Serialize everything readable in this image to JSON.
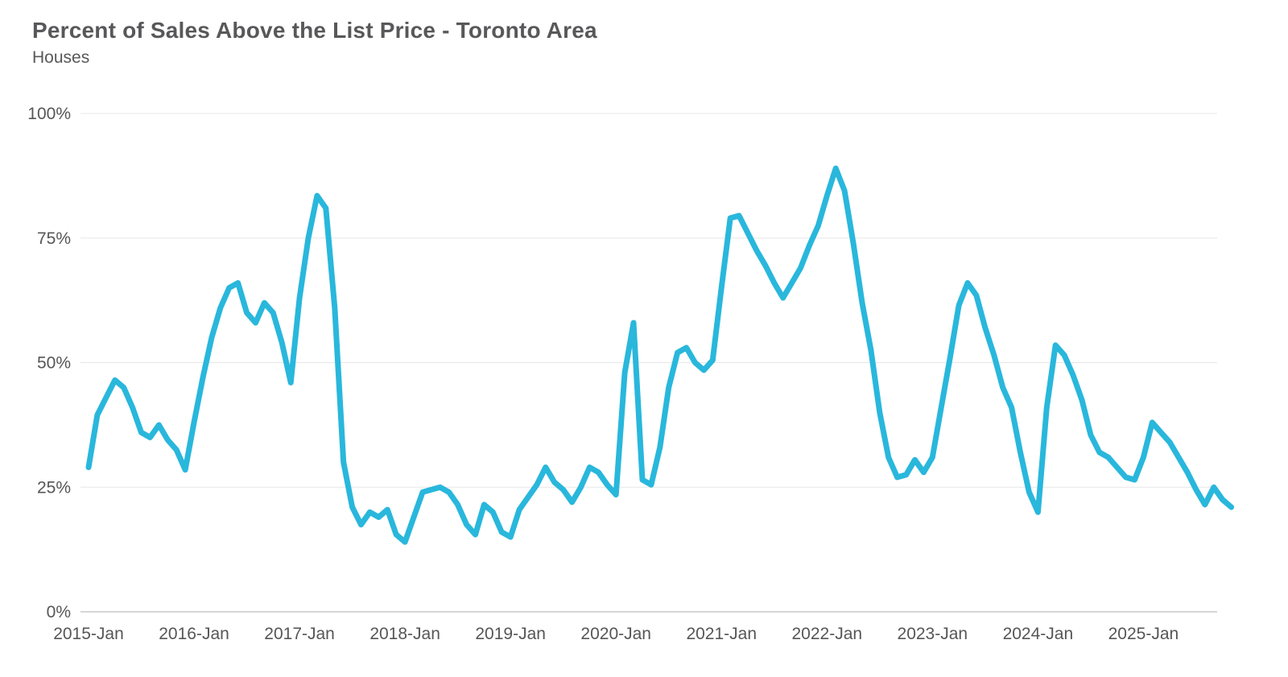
{
  "chart_data": {
    "type": "line",
    "title": "Percent of Sales Above the List Price - Toronto Area",
    "subtitle": "Houses",
    "unit": "%",
    "x_start": "2015-Jan",
    "x_end": "2025-Nov",
    "x_frequency": "monthly",
    "x_tick_labels": [
      "2015-Jan",
      "2016-Jan",
      "2017-Jan",
      "2018-Jan",
      "2019-Jan",
      "2020-Jan",
      "2021-Jan",
      "2022-Jan",
      "2023-Jan",
      "2024-Jan",
      "2025-Jan"
    ],
    "y_ticks": [
      0,
      25,
      50,
      75,
      100
    ],
    "y_tick_labels": [
      "0%",
      "25%",
      "50%",
      "75%",
      "100%"
    ],
    "ylim": [
      0,
      100
    ],
    "grid": true,
    "legend": false,
    "line_color": "#29b7dc",
    "axis_label_color": "#565656",
    "title_color": "#58585a",
    "gridline_color": "#e7e7e7",
    "series": [
      {
        "name": "Houses",
        "values": [
          29,
          39.5,
          43,
          46.5,
          45,
          41,
          36,
          35,
          37.5,
          34.5,
          32.5,
          28.5,
          38,
          47,
          55,
          61,
          65,
          66,
          60,
          58,
          62,
          60,
          54,
          46,
          63,
          75,
          83.5,
          81,
          61,
          30,
          21,
          17.5,
          20,
          19,
          20.5,
          15.5,
          14,
          19,
          24,
          24.5,
          25,
          24,
          21.5,
          17.5,
          15.5,
          21.5,
          20,
          16,
          15,
          20.5,
          23,
          25.5,
          29,
          26,
          24.5,
          22,
          25,
          29,
          28,
          25.5,
          23.5,
          48,
          58,
          26.5,
          25.5,
          33,
          45,
          52,
          53,
          50,
          48.5,
          50.5,
          65,
          79,
          79.5,
          76,
          72.5,
          69.5,
          66,
          63,
          66,
          69,
          73.5,
          77.5,
          83.5,
          89,
          84.5,
          74,
          62,
          52.5,
          40,
          31,
          27,
          27.5,
          30.5,
          28,
          31,
          41,
          51,
          61.5,
          66,
          63.5,
          57,
          51.5,
          45,
          41,
          32,
          24,
          20,
          41,
          53.5,
          51.5,
          47.5,
          42.5,
          35.5,
          32,
          31,
          29,
          27,
          26.5,
          31,
          38,
          36,
          34,
          31,
          28,
          24.5,
          21.5,
          25,
          22.5,
          21
        ]
      }
    ]
  }
}
